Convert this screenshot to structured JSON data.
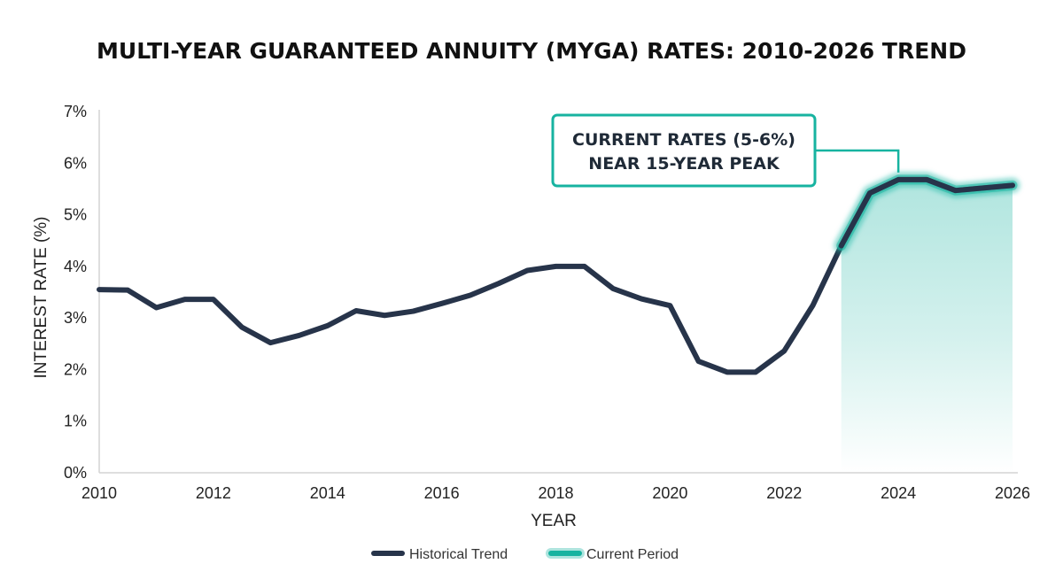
{
  "chart_data": {
    "type": "line",
    "title": "MULTI-YEAR GUARANTEED ANNUITY (MYGA) RATES: 2010-2026 TREND",
    "xlabel": "YEAR",
    "ylabel": "INTEREST RATE (%)",
    "xlim": [
      2010,
      2026
    ],
    "ylim": [
      0,
      7
    ],
    "x_ticks": [
      "2010",
      "2012",
      "2014",
      "2016",
      "2018",
      "2020",
      "2022",
      "2024",
      "2026"
    ],
    "y_ticks": [
      "0%",
      "1%",
      "2%",
      "3%",
      "4%",
      "5%",
      "6%",
      "7%"
    ],
    "grid": false,
    "legend_position": "bottom",
    "series": [
      {
        "name": "Historical Trend",
        "color": "#27344a",
        "x": [
          2010,
          2010.5,
          2011,
          2011.5,
          2012,
          2012.5,
          2013,
          2013.5,
          2014,
          2014.5,
          2015,
          2015.5,
          2016,
          2016.5,
          2017,
          2017.5,
          2018,
          2018.5,
          2019,
          2019.5,
          2020,
          2020.5,
          2021,
          2021.5,
          2022,
          2022.5,
          2023,
          2023.5,
          2024,
          2024.5,
          2025,
          2026
        ],
        "y": [
          3.55,
          3.54,
          3.2,
          3.36,
          3.36,
          2.82,
          2.52,
          2.66,
          2.85,
          3.14,
          3.05,
          3.13,
          3.28,
          3.44,
          3.67,
          3.92,
          4.0,
          4.0,
          3.57,
          3.37,
          3.24,
          2.16,
          1.95,
          1.95,
          2.36,
          3.24,
          4.4,
          5.42,
          5.68,
          5.68,
          5.47,
          5.57
        ]
      },
      {
        "name": "Current Period",
        "color": "#17b3a0",
        "x": [
          2023,
          2023.5,
          2024,
          2024.5,
          2025,
          2026
        ],
        "y": [
          4.4,
          5.42,
          5.68,
          5.68,
          5.47,
          5.57
        ]
      }
    ],
    "annotations": [
      {
        "text_lines": [
          "CURRENT RATES (5-6%)",
          "NEAR 15-YEAR PEAK"
        ],
        "x": 2024,
        "y": 5.68
      }
    ]
  }
}
